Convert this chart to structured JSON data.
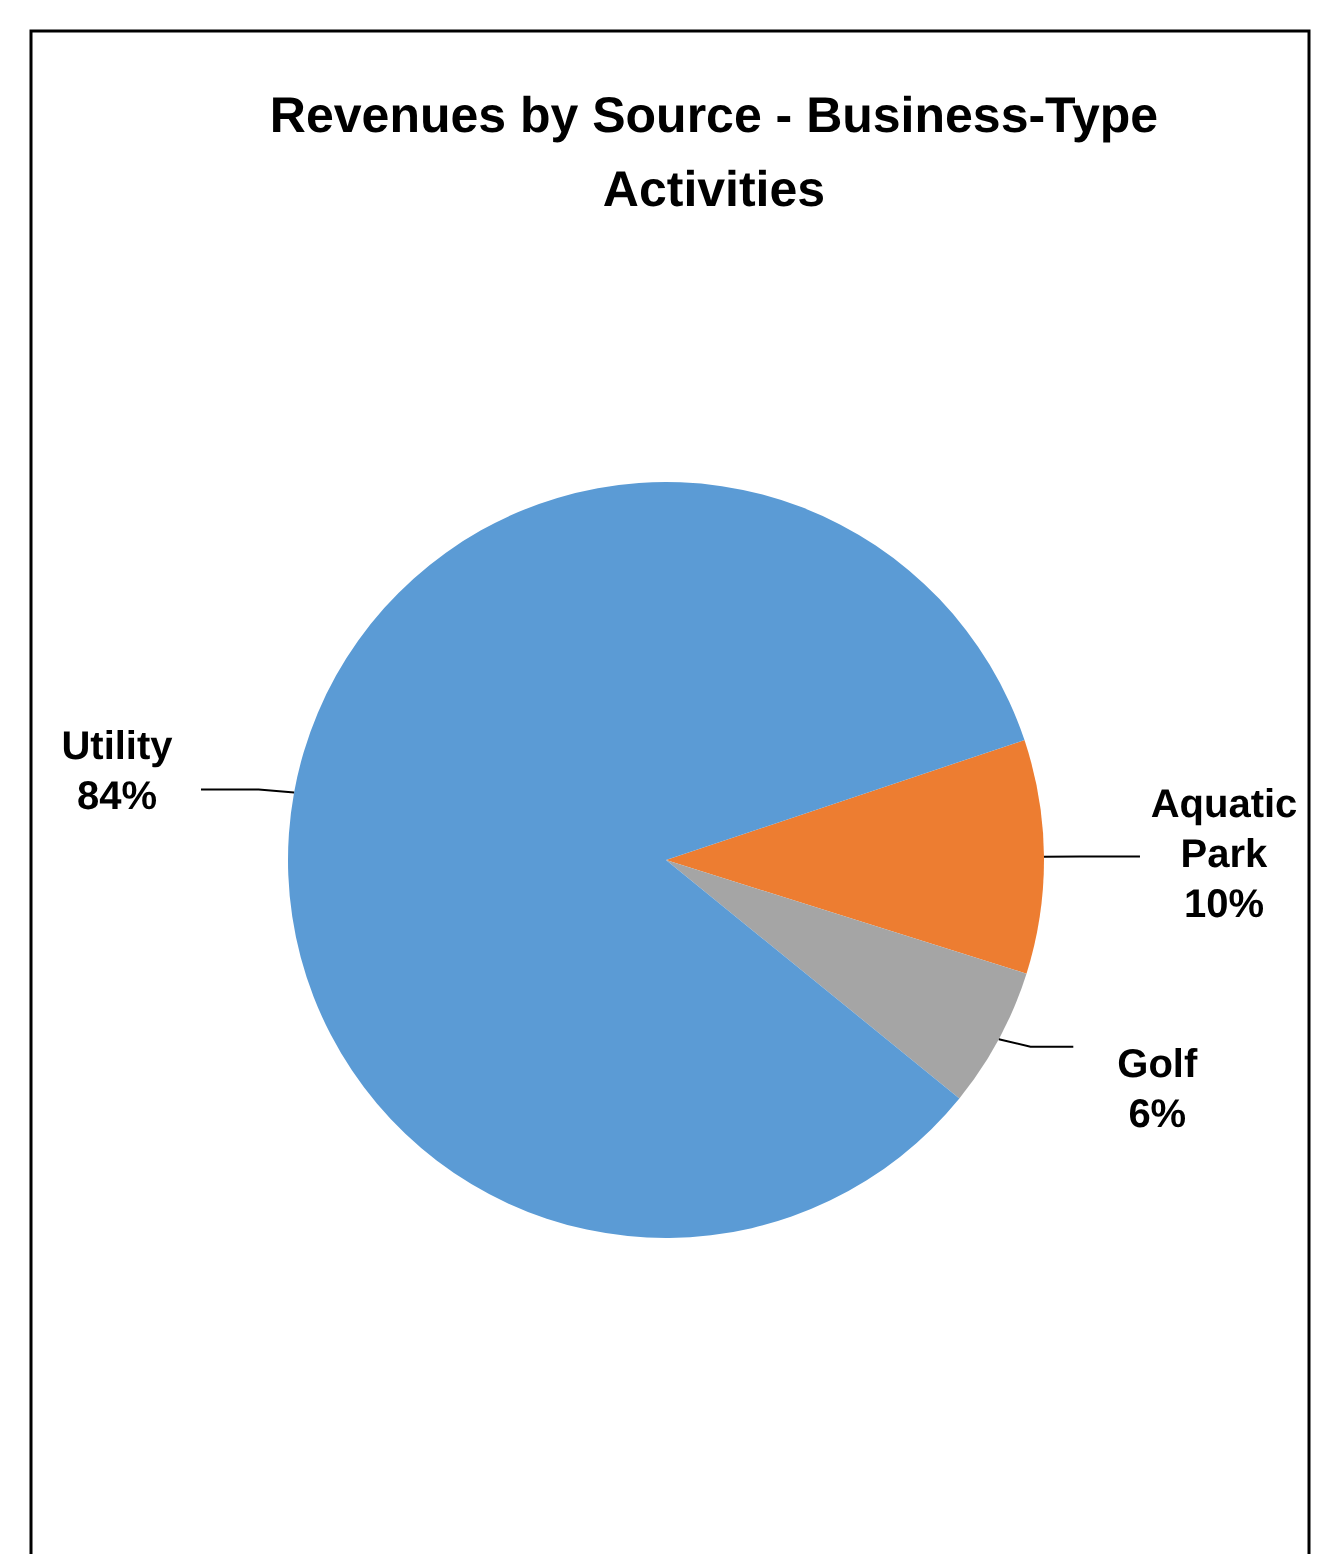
{
  "chart_data": {
    "type": "pie",
    "title": "Revenues by Source - Business-Type Activities",
    "categories": [
      "Aquatic Park",
      "Golf",
      "Utility"
    ],
    "values": [
      10,
      6,
      84
    ],
    "colors": [
      "#ed7d31",
      "#a5a5a5",
      "#5b9bd5"
    ],
    "value_labels": [
      "10%",
      "6%",
      "84%"
    ],
    "legend": false
  }
}
